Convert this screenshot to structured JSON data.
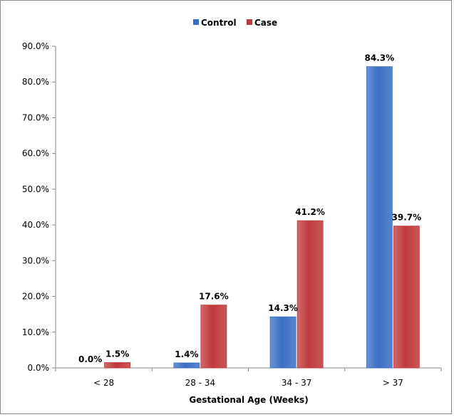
{
  "chart_data": {
    "type": "bar",
    "categories": [
      "< 28",
      "28 - 34",
      "34 - 37",
      "> 37"
    ],
    "series": [
      {
        "name": "Control",
        "values": [
          0.0,
          1.4,
          14.3,
          84.3
        ],
        "labels": [
          "0.0%",
          "1.4%",
          "14.3%",
          "84.3%"
        ],
        "color": "#3a6fc4"
      },
      {
        "name": "Case",
        "values": [
          1.5,
          17.6,
          41.2,
          39.7
        ],
        "labels": [
          "1.5%",
          "17.6%",
          "41.2%",
          "39.7%"
        ],
        "color": "#c0393b"
      }
    ],
    "yticks": [
      "0.0%",
      "10.0%",
      "20.0%",
      "30.0%",
      "40.0%",
      "50.0%",
      "60.0%",
      "70.0%",
      "80.0%",
      "90.0%"
    ],
    "ylim": [
      0,
      90
    ],
    "xlabel": "Gestational Age (Weeks)",
    "ylabel": "",
    "legend_position": "top",
    "grid": false
  }
}
